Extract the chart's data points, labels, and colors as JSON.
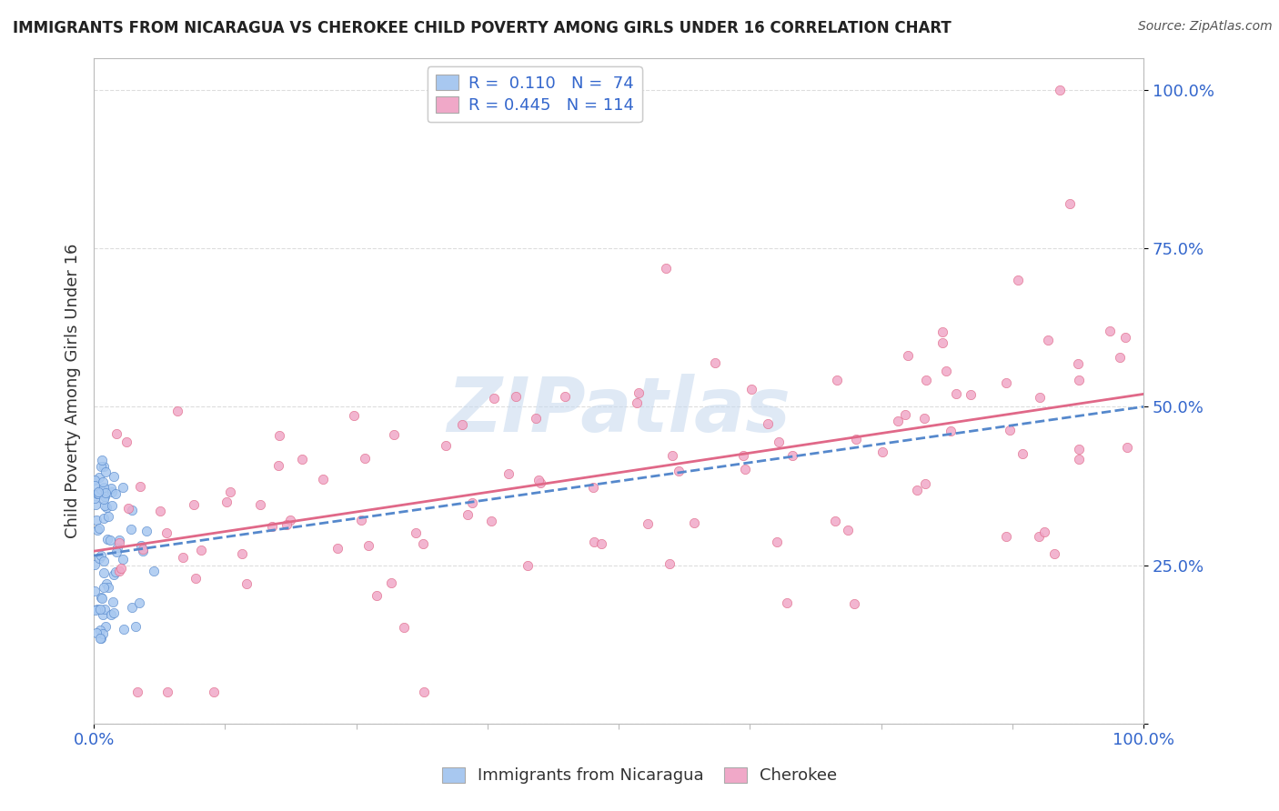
{
  "title": "IMMIGRANTS FROM NICARAGUA VS CHEROKEE CHILD POVERTY AMONG GIRLS UNDER 16 CORRELATION CHART",
  "source": "Source: ZipAtlas.com",
  "ylabel": "Child Poverty Among Girls Under 16",
  "legend_blue_label": "Immigrants from Nicaragua",
  "legend_pink_label": "Cherokee",
  "r_blue": 0.11,
  "n_blue": 74,
  "r_pink": 0.445,
  "n_pink": 114,
  "xmin": 0.0,
  "xmax": 1.0,
  "ymin": 0.0,
  "ymax": 1.05,
  "ytick_labels": [
    "",
    "25.0%",
    "50.0%",
    "75.0%",
    "100.0%"
  ],
  "xtick_labels": [
    "0.0%",
    "100.0%"
  ],
  "watermark": "ZIPatlas",
  "background_color": "#ffffff",
  "blue_scatter_color": "#a8c8f0",
  "pink_scatter_color": "#f0a8c8",
  "blue_line_color": "#5588cc",
  "pink_line_color": "#e06888",
  "title_fontsize": 12,
  "source_fontsize": 10,
  "legend_fontsize": 13,
  "axis_fontsize": 13
}
